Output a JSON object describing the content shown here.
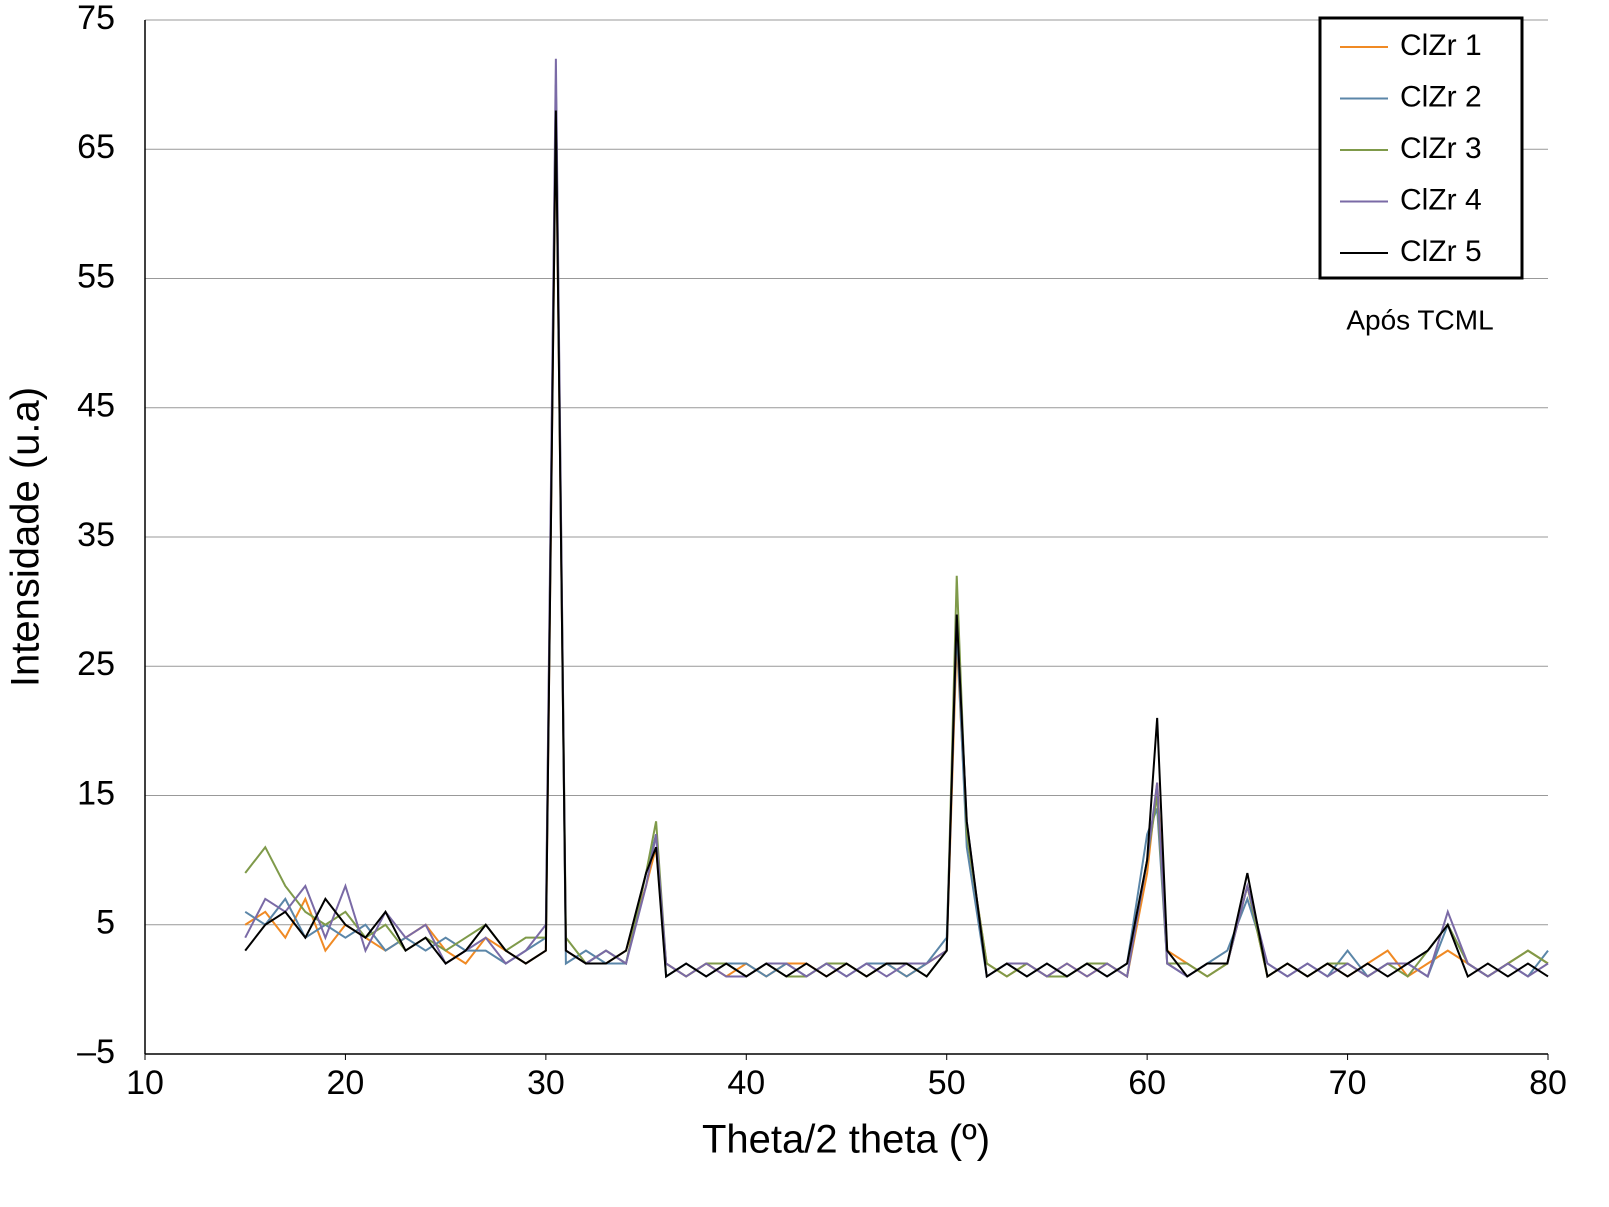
{
  "chart_data": {
    "type": "line",
    "y_label": "Intensidade (u.a)",
    "x_label": "Theta/2 theta (º)",
    "annotation": "Após TCML",
    "xlim": [
      10,
      80
    ],
    "xticks": [
      10,
      20,
      30,
      40,
      50,
      60,
      70,
      80
    ],
    "ylim": [
      -5,
      75
    ],
    "yticks": [
      75,
      65,
      55,
      45,
      35,
      25,
      15,
      5,
      {
        "value": -5,
        "label": "–5"
      }
    ],
    "grid": true,
    "legend": "upper right",
    "x": [
      15,
      16,
      17,
      18,
      19,
      20,
      21,
      22,
      23,
      24,
      25,
      26,
      27,
      28,
      29,
      30,
      30.5,
      31,
      32,
      33,
      34,
      35,
      35.5,
      36,
      37,
      38,
      39,
      40,
      41,
      42,
      43,
      44,
      45,
      46,
      47,
      48,
      49,
      50,
      50.5,
      51,
      52,
      53,
      54,
      55,
      56,
      57,
      58,
      59,
      60,
      60.5,
      61,
      62,
      63,
      64,
      65,
      66,
      67,
      68,
      69,
      70,
      71,
      72,
      73,
      74,
      75,
      76,
      77,
      78,
      79,
      80
    ],
    "series": [
      {
        "name": "ClZr 1",
        "color": "#f08a24",
        "values": [
          5,
          6,
          4,
          7,
          3,
          5,
          4,
          3,
          4,
          5,
          3,
          2,
          4,
          3,
          2,
          3,
          68,
          3,
          2,
          2,
          3,
          8,
          11,
          2,
          1,
          2,
          1,
          2,
          1,
          2,
          2,
          1,
          2,
          1,
          2,
          1,
          2,
          3,
          27,
          12,
          2,
          1,
          2,
          1,
          2,
          1,
          2,
          1,
          9,
          16,
          3,
          2,
          1,
          2,
          8,
          1,
          2,
          1,
          2,
          1,
          2,
          3,
          1,
          2,
          3,
          2,
          1,
          2,
          3,
          2
        ]
      },
      {
        "name": "ClZr 2",
        "color": "#5b86a8",
        "values": [
          6,
          5,
          7,
          4,
          5,
          4,
          5,
          3,
          4,
          3,
          4,
          3,
          3,
          2,
          3,
          4,
          70,
          2,
          3,
          2,
          2,
          9,
          12,
          1,
          2,
          1,
          2,
          2,
          1,
          2,
          1,
          2,
          1,
          2,
          2,
          1,
          2,
          4,
          28,
          11,
          1,
          2,
          1,
          2,
          1,
          2,
          1,
          2,
          12,
          14,
          2,
          1,
          2,
          3,
          7,
          2,
          1,
          2,
          1,
          3,
          1,
          2,
          2,
          1,
          5,
          2,
          1,
          2,
          1,
          3
        ]
      },
      {
        "name": "ClZr 3",
        "color": "#7f9a4a",
        "values": [
          9,
          11,
          8,
          6,
          5,
          6,
          4,
          5,
          3,
          4,
          3,
          4,
          5,
          3,
          4,
          4,
          70,
          4,
          2,
          3,
          2,
          9,
          13,
          2,
          1,
          2,
          2,
          1,
          2,
          1,
          1,
          2,
          2,
          1,
          2,
          2,
          1,
          3,
          32,
          12,
          2,
          1,
          2,
          1,
          1,
          2,
          2,
          1,
          10,
          15,
          2,
          2,
          1,
          2,
          8,
          1,
          2,
          1,
          2,
          2,
          1,
          2,
          1,
          3,
          5,
          2,
          1,
          2,
          3,
          2
        ]
      },
      {
        "name": "ClZr 4",
        "color": "#7a6aa6",
        "values": [
          4,
          7,
          6,
          8,
          4,
          8,
          3,
          6,
          4,
          5,
          2,
          3,
          4,
          2,
          3,
          5,
          72,
          3,
          2,
          3,
          2,
          8,
          12,
          2,
          1,
          2,
          1,
          1,
          2,
          2,
          1,
          2,
          1,
          2,
          1,
          2,
          2,
          3,
          29,
          13,
          1,
          2,
          2,
          1,
          2,
          1,
          2,
          1,
          10,
          16,
          2,
          1,
          2,
          2,
          8,
          2,
          1,
          2,
          1,
          2,
          1,
          2,
          2,
          1,
          6,
          2,
          1,
          2,
          1,
          2
        ]
      },
      {
        "name": "ClZr 5",
        "color": "#000000",
        "values": [
          3,
          5,
          6,
          4,
          7,
          5,
          4,
          6,
          3,
          4,
          2,
          3,
          5,
          3,
          2,
          3,
          68,
          3,
          2,
          2,
          3,
          9,
          11,
          1,
          2,
          1,
          2,
          1,
          2,
          1,
          2,
          1,
          2,
          1,
          2,
          2,
          1,
          3,
          29,
          13,
          1,
          2,
          1,
          2,
          1,
          2,
          1,
          2,
          10,
          21,
          3,
          1,
          2,
          2,
          9,
          1,
          2,
          1,
          2,
          1,
          2,
          1,
          2,
          3,
          5,
          1,
          2,
          1,
          2,
          1
        ]
      }
    ]
  }
}
